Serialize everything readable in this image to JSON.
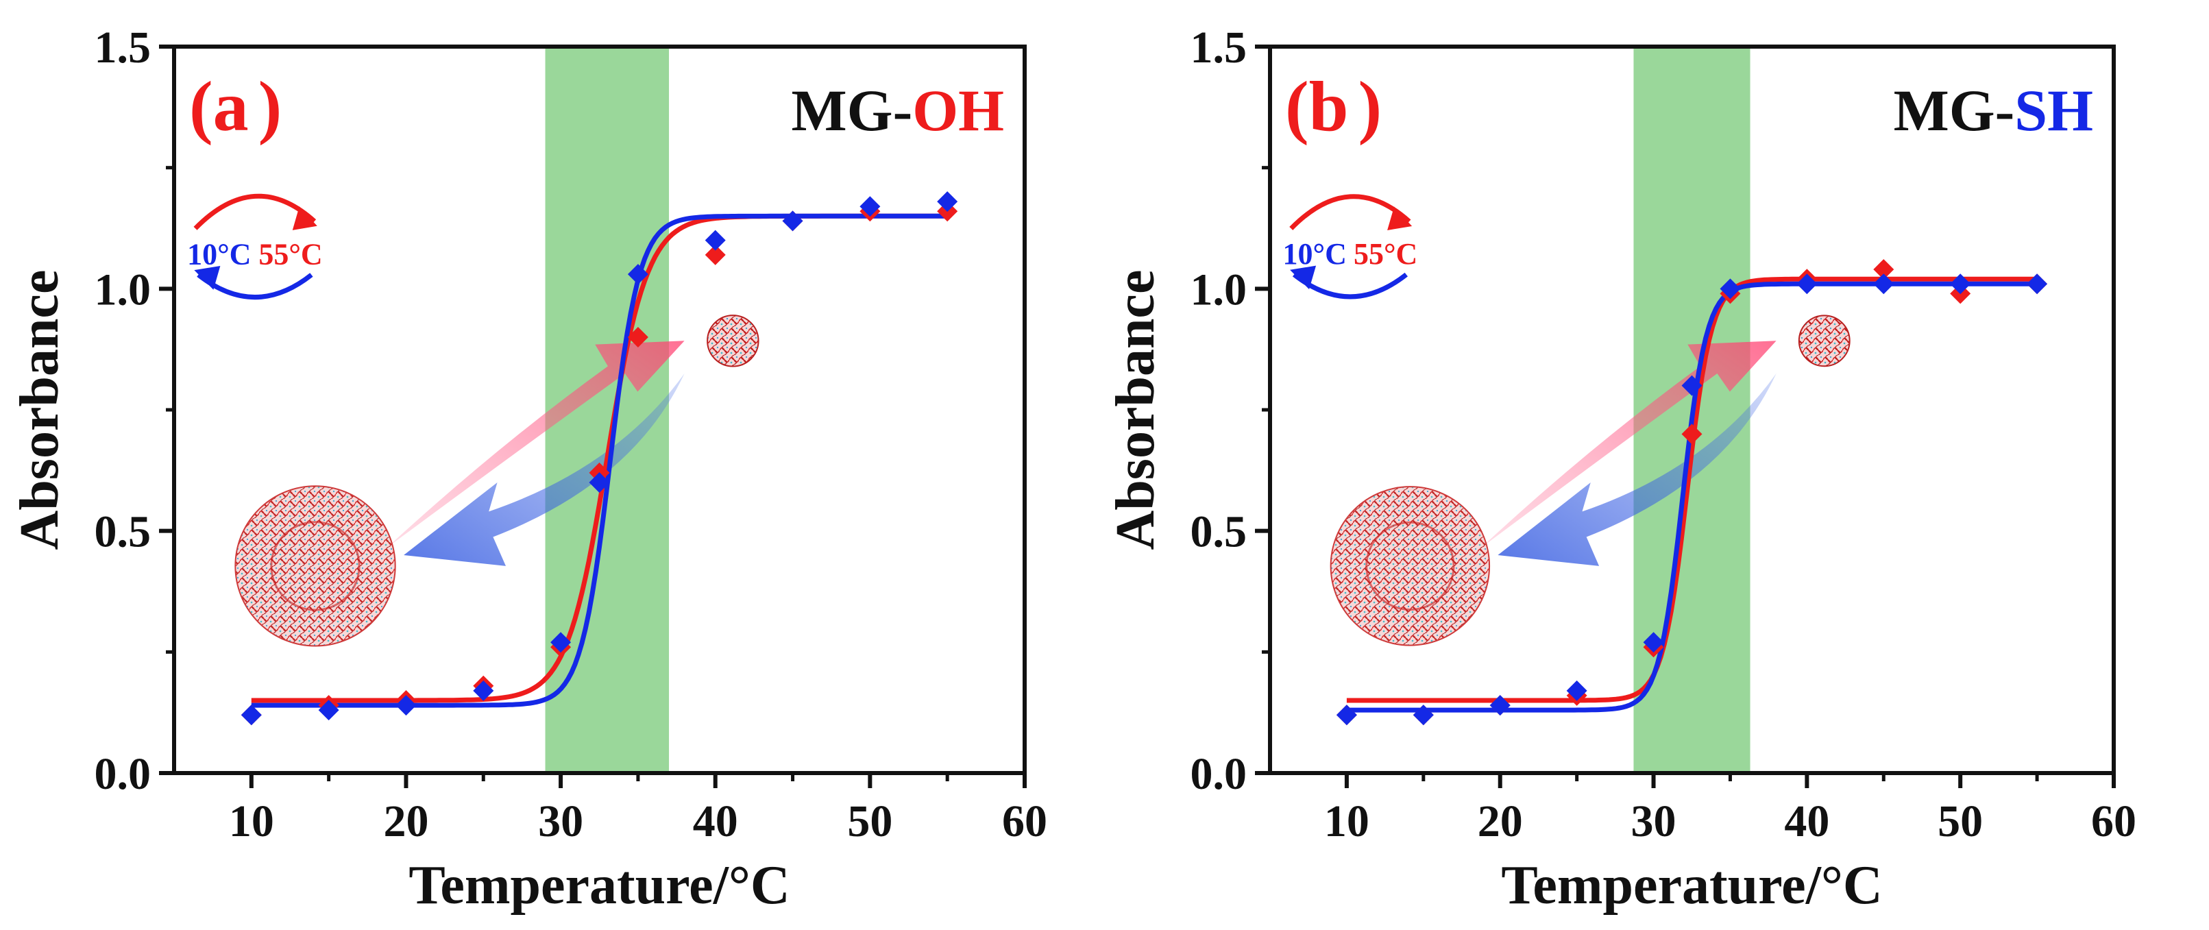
{
  "colors": {
    "red": "#ee1c1c",
    "blue": "#1428e6",
    "transition_band": "#9ad79a",
    "axis": "#111111"
  },
  "icons": [
    "cycle-arrow-icon",
    "heating-arrow-icon",
    "cooling-arrow-icon",
    "swollen-microgel-icon",
    "collapsed-microgel-icon"
  ],
  "chart_data": [
    {
      "type": "scatter",
      "panel_label_open": "(a",
      "panel_label_close": ")",
      "title_prefix": "MG-",
      "title_suffix": "OH",
      "title_suffix_color": "#ee1c1c",
      "xlabel": "Temperature/°C",
      "ylabel": "Absorbance",
      "xlim": [
        5,
        60
      ],
      "ylim": [
        0,
        1.5
      ],
      "xticks": [
        "10",
        "20",
        "30",
        "40",
        "50",
        "60"
      ],
      "yticks": [
        "0.0",
        "0.5",
        "1.0",
        "1.5"
      ],
      "transition_band": [
        29,
        37
      ],
      "cycle_labels": {
        "cold": "10°C",
        "hot": "55°C"
      },
      "x": [
        10,
        15,
        20,
        25,
        30,
        32.5,
        35,
        40,
        45,
        50,
        55
      ],
      "series": [
        {
          "name": "heating",
          "color": "#ee1c1c",
          "values": [
            0.12,
            0.14,
            0.15,
            0.18,
            0.26,
            0.62,
            0.9,
            1.07,
            1.14,
            1.16,
            1.16
          ],
          "fit": {
            "low": 0.15,
            "high": 1.15,
            "midpoint": 33.0,
            "width": 1.3
          }
        },
        {
          "name": "cooling",
          "color": "#1428e6",
          "values": [
            0.12,
            0.13,
            0.14,
            0.17,
            0.27,
            0.6,
            1.03,
            1.1,
            1.14,
            1.17,
            1.18
          ],
          "fit": {
            "low": 0.14,
            "high": 1.15,
            "midpoint": 33.2,
            "width": 0.95
          }
        }
      ]
    },
    {
      "type": "scatter",
      "panel_label_open": "(b",
      "panel_label_close": ")",
      "title_prefix": "MG-",
      "title_suffix": "SH",
      "title_suffix_color": "#1428e6",
      "xlabel": "Temperature/°C",
      "ylabel": "Absorbance",
      "xlim": [
        5,
        60
      ],
      "ylim": [
        0,
        1.5
      ],
      "xticks": [
        "10",
        "20",
        "30",
        "40",
        "50",
        "60"
      ],
      "yticks": [
        "0.0",
        "0.5",
        "1.0",
        "1.5"
      ],
      "transition_band": [
        28.7,
        36.3
      ],
      "cycle_labels": {
        "cold": "10°C",
        "hot": "55°C"
      },
      "x": [
        10,
        15,
        20,
        25,
        30,
        32.5,
        35,
        40,
        45,
        50,
        55
      ],
      "series": [
        {
          "name": "heating",
          "color": "#ee1c1c",
          "values": [
            0.12,
            0.12,
            0.14,
            0.16,
            0.26,
            0.7,
            0.99,
            1.02,
            1.04,
            0.99,
            1.01
          ],
          "fit": {
            "low": 0.15,
            "high": 1.02,
            "midpoint": 32.2,
            "width": 0.8
          }
        },
        {
          "name": "cooling",
          "color": "#1428e6",
          "values": [
            0.12,
            0.12,
            0.14,
            0.17,
            0.27,
            0.8,
            1.0,
            1.01,
            1.01,
            1.01,
            1.01
          ],
          "fit": {
            "low": 0.13,
            "high": 1.01,
            "midpoint": 31.9,
            "width": 0.78
          }
        }
      ]
    }
  ]
}
